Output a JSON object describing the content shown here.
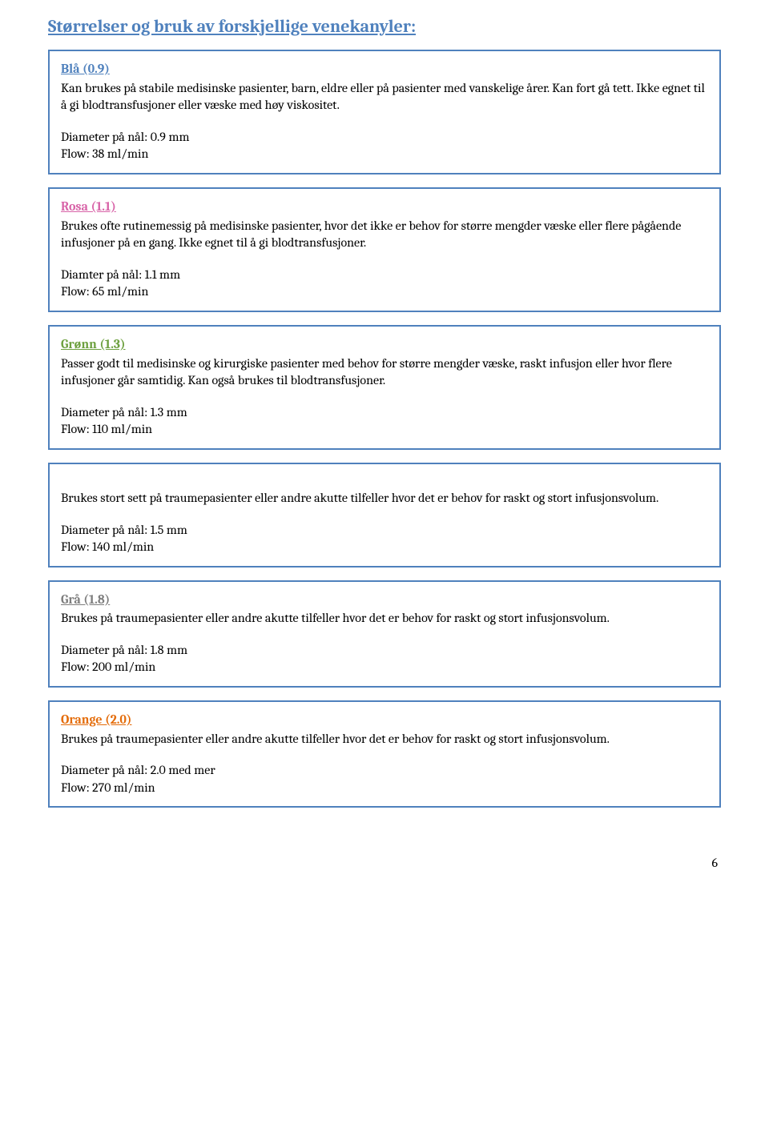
{
  "title": "Størrelser og bruk av forskjellige venekanyler:",
  "boxes": [
    {
      "title": "Blå (0.9)",
      "title_color": "#4f81bd",
      "desc": "Kan brukes på stabile medisinske pasienter, barn, eldre eller på pasienter med vanskelige årer. Kan fort gå tett. Ikke egnet til å gi blodtransfusjoner eller væske med høy viskositet.",
      "diameter": "Diameter på nål: 0.9 mm",
      "flow": "Flow: 38 ml/min"
    },
    {
      "title": "Rosa (1.1)",
      "title_color": "#d864a8",
      "desc": "Brukes ofte rutinemessig på medisinske pasienter, hvor det ikke er behov for større mengder væske eller flere pågående infusjoner på en gang. Ikke egnet til å gi blodtransfusjoner.",
      "diameter": "Diamter på nål: 1.1 mm",
      "flow": "Flow: 65 ml/min"
    },
    {
      "title": "Grønn (1.3)",
      "title_color": "#6da03f",
      "desc": "Passer godt til medisinske og kirurgiske pasienter med behov for større mengder væske, raskt infusjon eller hvor flere infusjoner går samtidig. Kan også brukes til blodtransfusjoner.",
      "diameter": "Diameter på nål: 1.3 mm",
      "flow": "Flow: 110 ml/min"
    },
    {
      "title": "",
      "title_color": "",
      "desc": "Brukes stort sett på traumepasienter eller andre akutte tilfeller hvor det er behov for raskt og stort infusjonsvolum.",
      "diameter": "Diameter på nål: 1.5 mm",
      "flow": "Flow: 140 ml/min"
    },
    {
      "title": "Grå (1.8)",
      "title_color": "#7e7e7e",
      "desc": "Brukes på traumepasienter eller andre akutte tilfeller hvor det er behov for raskt og stort infusjonsvolum.",
      "diameter": "Diameter på nål: 1.8 mm",
      "flow": "Flow: 200 ml/min"
    },
    {
      "title": "Orange (2.0)",
      "title_color": "#e46c0a",
      "desc": "Brukes på traumepasienter eller andre akutte tilfeller hvor det er behov for raskt og stort infusjonsvolum.",
      "diameter": "Diameter på nål: 2.0 med mer",
      "flow": "Flow: 270 ml/min"
    }
  ],
  "page_number": "6"
}
